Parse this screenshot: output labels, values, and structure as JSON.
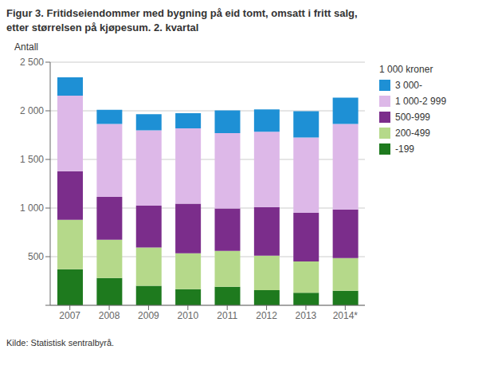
{
  "chart_data": {
    "type": "bar",
    "stacked": true,
    "title": "Figur 3. Fritidseiendommer med bygning på eid tomt, omsatt i fritt salg,",
    "subtitle": "etter størrelsen på kjøpesum. 2. kvartal",
    "ylabel": "Antall",
    "annotations": [
      "Kilde: Statistisk sentralbyrå."
    ],
    "legend_title": "1 000 kroner",
    "legend": "right",
    "grid": true,
    "categories": [
      "2007",
      "2008",
      "2009",
      "2010",
      "2011",
      "2012",
      "2013",
      "2014*"
    ],
    "series": [
      {
        "name": "-199",
        "color": "#1e7a1e",
        "values": [
          370,
          280,
          200,
          165,
          190,
          155,
          130,
          150
        ]
      },
      {
        "name": "200-499",
        "color": "#b5d98a",
        "values": [
          510,
          395,
          395,
          370,
          370,
          355,
          320,
          335
        ]
      },
      {
        "name": "500-999",
        "color": "#7b2d8b",
        "values": [
          500,
          440,
          430,
          510,
          435,
          500,
          500,
          500
        ]
      },
      {
        "name": "1 000-2 999",
        "color": "#ddb8e8",
        "values": [
          775,
          750,
          775,
          775,
          775,
          775,
          775,
          880
        ]
      },
      {
        "name": "3 000-",
        "color": "#1e90d5",
        "values": [
          190,
          145,
          165,
          155,
          235,
          230,
          270,
          270
        ]
      }
    ],
    "ylim": [
      0,
      2500
    ],
    "yticks": [
      {
        "value": 0,
        "label": ""
      },
      500,
      {
        "value": 1000,
        "label": "1 000"
      },
      {
        "value": 1500,
        "label": "1 500"
      },
      {
        "value": 2000,
        "label": "2 000"
      },
      {
        "value": 2500,
        "label": "2 500"
      }
    ]
  }
}
